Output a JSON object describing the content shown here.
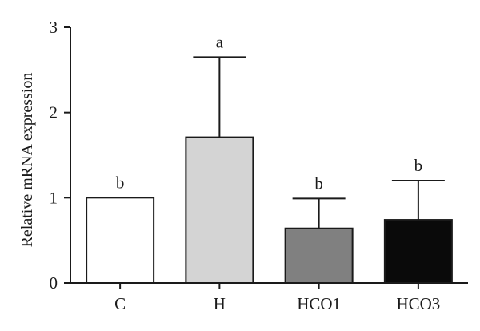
{
  "chart_data": {
    "type": "bar",
    "title": "",
    "xlabel": "",
    "ylabel": "Relative mRNA expression",
    "ylim": [
      0,
      3
    ],
    "yticks": [
      0,
      1,
      2,
      3
    ],
    "categories": [
      "C",
      "H",
      "HCO1",
      "HCO3"
    ],
    "values": [
      1.0,
      1.71,
      0.64,
      0.74
    ],
    "error_upper": [
      0.0,
      0.94,
      0.35,
      0.46
    ],
    "significance_labels": [
      "b",
      "a",
      "b",
      "b"
    ],
    "bar_colors": [
      "#ffffff",
      "#d4d4d4",
      "#808080",
      "#0a0a0a"
    ],
    "grid": false,
    "legend": "none"
  }
}
